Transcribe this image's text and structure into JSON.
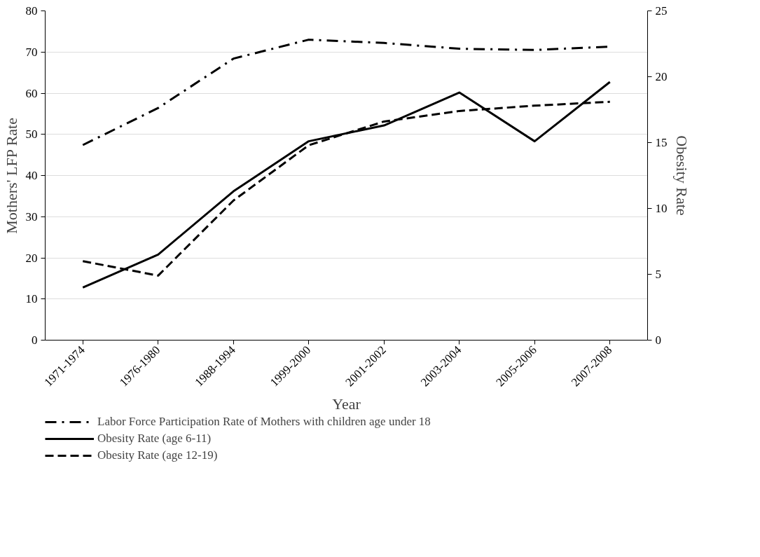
{
  "chart_data": {
    "type": "line",
    "xlabel": "Year",
    "ylabel": "Mothers' LFP Rate",
    "y2label": "Obesity Rate",
    "categories": [
      "1971-1974",
      "1976-1980",
      "1988-1994",
      "1999-2000",
      "2001-2002",
      "2003-2004",
      "2005-2006",
      "2007-2008"
    ],
    "series": [
      {
        "name": "Labor Force Participation Rate of Mothers with children age under 18",
        "color": "#000000",
        "line_style": "dashdot",
        "values": [
          47.4,
          56.4,
          68.4,
          73.0,
          72.2,
          70.8,
          70.5,
          71.3
        ]
      },
      {
        "name": "Obesity Rate (age 6-11)",
        "color": "#000000",
        "line_style": "solid",
        "axis": "y2",
        "values": [
          4.0,
          6.5,
          11.3,
          15.1,
          16.3,
          18.8,
          15.1,
          19.6
        ]
      },
      {
        "name": "Obesity Rate (age 12-19)",
        "color": "#000000",
        "line_style": "dashed",
        "axis": "y2",
        "values": [
          6.0,
          4.9,
          10.6,
          14.8,
          16.6,
          17.4,
          17.8,
          18.1
        ]
      }
    ],
    "ylim": [
      0,
      80
    ],
    "yticks": [
      0,
      10,
      20,
      30,
      40,
      50,
      60,
      70,
      80
    ],
    "y2lim": [
      0,
      25
    ],
    "y2ticks": [
      0,
      5,
      10,
      15,
      20,
      25
    ],
    "grid": "y",
    "legend": "bottom",
    "marker": "none"
  }
}
